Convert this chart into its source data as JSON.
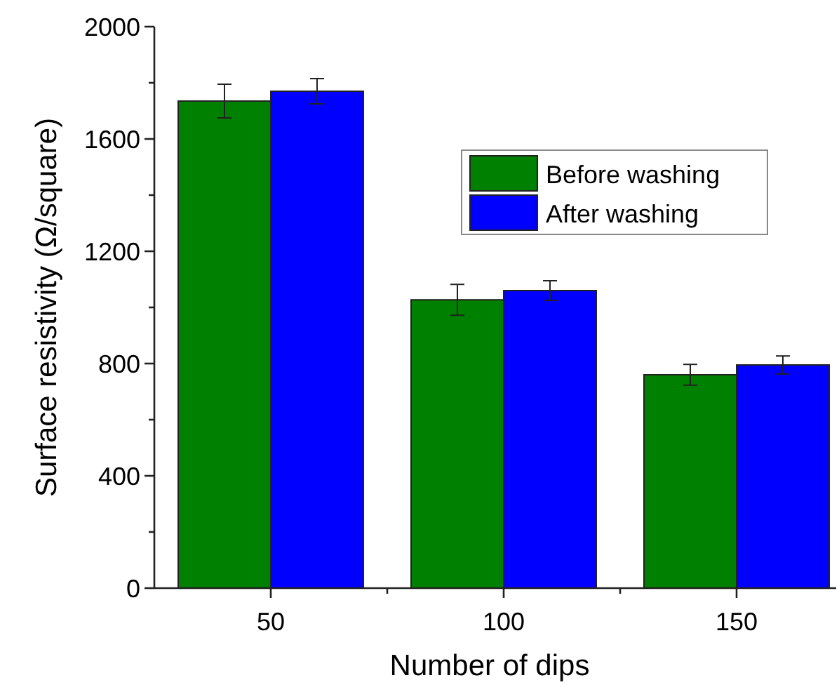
{
  "chart_data": {
    "type": "bar",
    "xlabel": "Number of dips",
    "ylabel": "Surface resistivity (Ω/square)",
    "categories": [
      "50",
      "100",
      "150"
    ],
    "series": [
      {
        "name": "Before washing",
        "color": "#008000",
        "values": [
          1735,
          1027,
          760
        ],
        "errors": [
          60,
          55,
          37
        ]
      },
      {
        "name": "After washing",
        "color": "#0000ff",
        "values": [
          1770,
          1060,
          795
        ],
        "errors": [
          45,
          35,
          32
        ]
      }
    ],
    "ylim": [
      0,
      2000
    ],
    "yticks": [
      0,
      {
        "value": 200,
        "label": null
      },
      400,
      {
        "value": 600,
        "label": null
      },
      800,
      {
        "value": 1000,
        "label": null
      },
      1200,
      {
        "value": 1400,
        "label": null
      },
      1600,
      {
        "value": 1800,
        "label": null
      },
      2000
    ],
    "grid": false,
    "legend": "top right"
  }
}
